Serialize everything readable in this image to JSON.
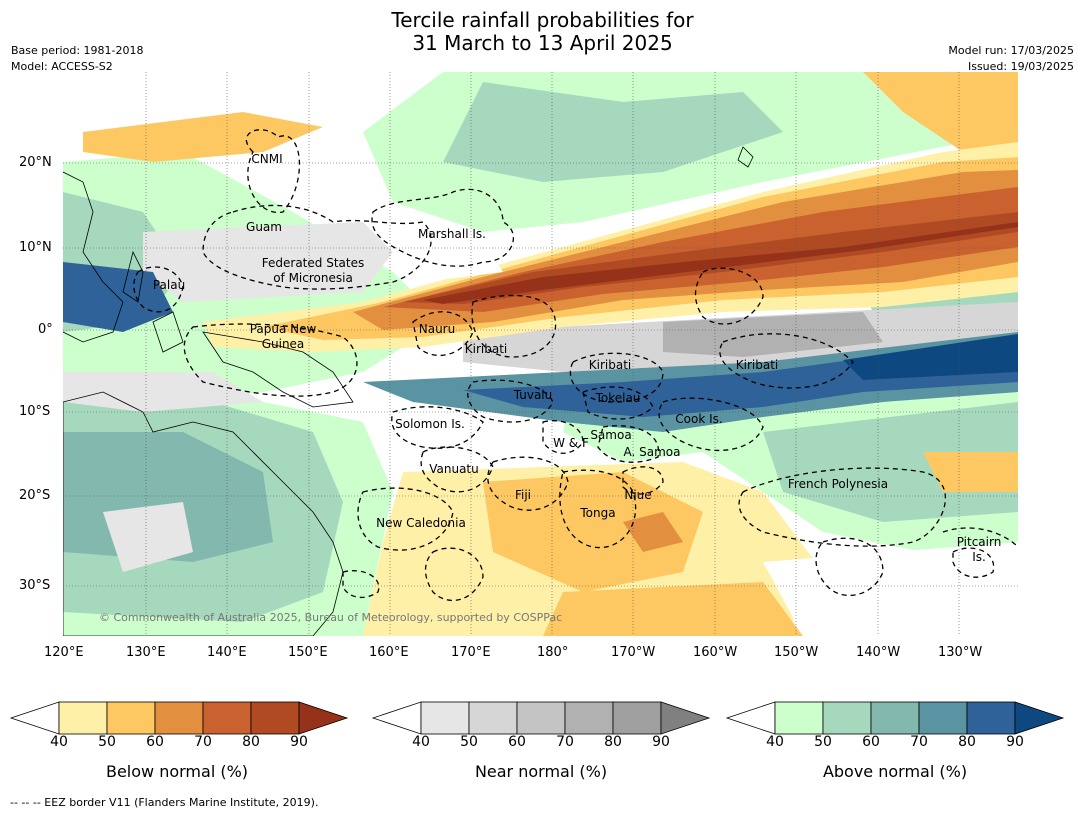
{
  "title": {
    "line1": "Tercile rainfall probabilities for",
    "line2": "31 March to 13 April 2025"
  },
  "meta": {
    "base_period": "Base period: 1981-2018",
    "model": "Model: ACCESS-S2",
    "model_run": "Model run: 17/03/2025",
    "issued": "Issued: 19/03/2025"
  },
  "axes": {
    "lat_ticks": [
      "20°N",
      "10°N",
      "0°",
      "10°S",
      "20°S",
      "30°S"
    ],
    "lon_ticks": [
      "120°E",
      "130°E",
      "140°E",
      "150°E",
      "160°E",
      "170°E",
      "180°",
      "170°W",
      "160°W",
      "150°W",
      "140°W",
      "130°W"
    ]
  },
  "regions": {
    "cnmi": "CNMI",
    "guam": "Guam",
    "marshall": "Marshall Is.",
    "fsm1": "Federated States",
    "fsm2": "of Micronesia",
    "palau": "Palau",
    "png1": "Papua New",
    "png2": "Guinea",
    "nauru": "Nauru",
    "kiribati_w": "Kiribati",
    "kiribati_c": "Kiribati",
    "kiribati_e": "Kiribati",
    "tuvalu": "Tuvalu",
    "tokelau": "Tokelau",
    "cook": "Cook Is.",
    "solomon": "Solomon Is.",
    "wf": "W & F",
    "samoa": "Samoa",
    "asamoa": "A. Samoa",
    "vanuatu": "Vanuatu",
    "fiji": "Fiji",
    "niue": "Niue",
    "tonga": "Tonga",
    "newcal": "New Caledonia",
    "frpoly": "French Polynesia",
    "pitcairn1": "Pitcairn",
    "pitcairn2": "Is."
  },
  "copyright": "© Commonwealth of Australia 2025, Bureau of Meteorology, supported by COSPPac",
  "colorbars": [
    {
      "label": "Below normal (%)",
      "ticks": [
        "40",
        "50",
        "60",
        "70",
        "80",
        "90"
      ],
      "colors": [
        "#ffffff",
        "#fff0a8",
        "#fdc862",
        "#e2903f",
        "#c9622f",
        "#b04a23",
        "#963219"
      ]
    },
    {
      "label": "Near normal (%)",
      "ticks": [
        "40",
        "50",
        "60",
        "70",
        "80",
        "90"
      ],
      "colors": [
        "#ffffff",
        "#e6e6e6",
        "#d6d6d6",
        "#c4c4c4",
        "#b1b1b1",
        "#9f9f9f",
        "#808080"
      ]
    },
    {
      "label": "Above normal (%)",
      "ticks": [
        "40",
        "50",
        "60",
        "70",
        "80",
        "90"
      ],
      "colors": [
        "#ffffff",
        "#ccffcc",
        "#a6d8bd",
        "#82b8ae",
        "#5a94a3",
        "#2f6298",
        "#0e4881"
      ]
    }
  ],
  "footnote": "--  --  -- EEZ border V11 (Flanders Marine Institute, 2019)."
}
